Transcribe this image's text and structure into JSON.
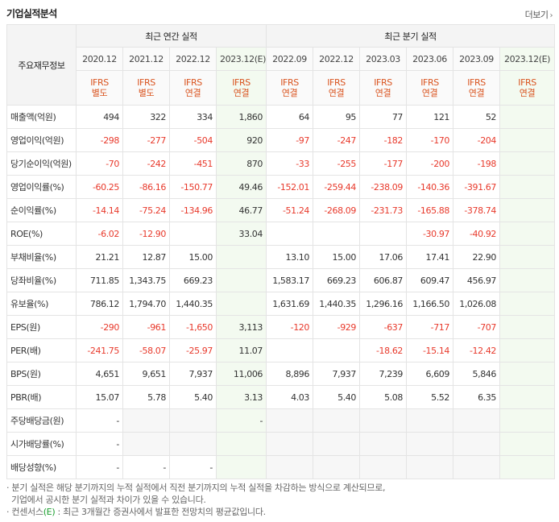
{
  "section_title": "기업실적분석",
  "more_label": "더보기",
  "more_arrow": "›",
  "table": {
    "label_header": "주요재무정보",
    "annual_header": "최근 연간 실적",
    "quarter_header": "최근 분기 실적",
    "periods": [
      "2020.12",
      "2021.12",
      "2022.12",
      "2023.12(E)",
      "2022.09",
      "2022.12",
      "2023.03",
      "2023.06",
      "2023.09",
      "2023.12(E)"
    ],
    "standards": [
      [
        "IFRS",
        "별도"
      ],
      [
        "IFRS",
        "별도"
      ],
      [
        "IFRS",
        "연결"
      ],
      [
        "IFRS",
        "연결"
      ],
      [
        "IFRS",
        "연결"
      ],
      [
        "IFRS",
        "연결"
      ],
      [
        "IFRS",
        "연결"
      ],
      [
        "IFRS",
        "연결"
      ],
      [
        "IFRS",
        "연결"
      ],
      [
        "IFRS",
        "연결"
      ]
    ],
    "rows": [
      {
        "label": "매출액(억원)",
        "values": [
          "494",
          "322",
          "334",
          "1,860",
          "64",
          "95",
          "77",
          "121",
          "52",
          ""
        ]
      },
      {
        "label": "영업이익(억원)",
        "values": [
          "-298",
          "-277",
          "-504",
          "920",
          "-97",
          "-247",
          "-182",
          "-170",
          "-204",
          ""
        ]
      },
      {
        "label": "당기순이익(억원)",
        "values": [
          "-70",
          "-242",
          "-451",
          "870",
          "-33",
          "-255",
          "-177",
          "-200",
          "-198",
          ""
        ]
      },
      {
        "label": "영업이익률(%)",
        "values": [
          "-60.25",
          "-86.16",
          "-150.77",
          "49.46",
          "-152.01",
          "-259.44",
          "-238.09",
          "-140.36",
          "-391.67",
          ""
        ]
      },
      {
        "label": "순이익률(%)",
        "values": [
          "-14.14",
          "-75.24",
          "-134.96",
          "46.77",
          "-51.24",
          "-268.09",
          "-231.73",
          "-165.88",
          "-378.74",
          ""
        ]
      },
      {
        "label": "ROE(%)",
        "values": [
          "-6.02",
          "-12.90",
          "",
          "33.04",
          "",
          "",
          "",
          "-30.97",
          "-40.92",
          ""
        ]
      },
      {
        "label": "부채비율(%)",
        "values": [
          "21.21",
          "12.87",
          "15.00",
          "",
          "13.10",
          "15.00",
          "17.06",
          "17.41",
          "22.90",
          ""
        ]
      },
      {
        "label": "당좌비율(%)",
        "values": [
          "711.85",
          "1,343.75",
          "669.23",
          "",
          "1,583.17",
          "669.23",
          "606.87",
          "609.47",
          "456.97",
          ""
        ]
      },
      {
        "label": "유보율(%)",
        "values": [
          "786.12",
          "1,794.70",
          "1,440.35",
          "",
          "1,631.69",
          "1,440.35",
          "1,296.16",
          "1,166.50",
          "1,026.08",
          ""
        ]
      },
      {
        "label": "EPS(원)",
        "values": [
          "-290",
          "-961",
          "-1,650",
          "3,113",
          "-120",
          "-929",
          "-637",
          "-717",
          "-707",
          ""
        ]
      },
      {
        "label": "PER(배)",
        "values": [
          "-241.75",
          "-58.07",
          "-25.97",
          "11.07",
          "",
          "",
          "-18.62",
          "-15.14",
          "-12.42",
          ""
        ]
      },
      {
        "label": "BPS(원)",
        "values": [
          "4,651",
          "9,651",
          "7,937",
          "11,006",
          "8,896",
          "7,937",
          "7,239",
          "6,609",
          "5,846",
          ""
        ]
      },
      {
        "label": "PBR(배)",
        "values": [
          "15.07",
          "5.78",
          "5.40",
          "3.13",
          "4.03",
          "5.40",
          "5.08",
          "5.52",
          "6.35",
          ""
        ]
      },
      {
        "label": "주당배당금(원)",
        "values": [
          "-",
          "",
          "",
          "-",
          "",
          "",
          "",
          "",
          "",
          ""
        ]
      },
      {
        "label": "시가배당률(%)",
        "values": [
          "-",
          "",
          "",
          "",
          "",
          "",
          "",
          "",
          "",
          ""
        ]
      },
      {
        "label": "배당성향(%)",
        "values": [
          "-",
          "-",
          "-",
          "",
          "",
          "",
          "",
          "",
          "",
          ""
        ]
      }
    ]
  },
  "notes": {
    "line1": "· 분기 실적은 해당 분기까지의 누적 실적에서 직전 분기까지의 누적 실적을 차감하는 방식으로 계산되므로,",
    "line2": "  기업에서 공시한 분기 실적과 차이가 있을 수 있습니다.",
    "line3_prefix": "· 컨센서스",
    "line3_em": "(E)",
    "line3_suffix": " : 최근 3개월간 증권사에서 발표한 전망치의 평균값입니다."
  },
  "colors": {
    "negative": "#e8392b",
    "standard_label": "#d9531e",
    "estimate_bg": "#f3faf0",
    "consensus_em": "#1a9e2e"
  }
}
